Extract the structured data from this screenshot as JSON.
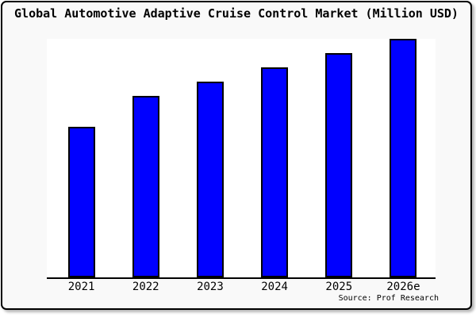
{
  "figure": {
    "title": "Global Automotive Adaptive Cruise Control Market (Million USD)",
    "source": "Source: Prof Research",
    "background_color": "#f9f9f9",
    "plot_background_color": "#ffffff",
    "border_color": "#000000"
  },
  "chart_data": {
    "type": "bar",
    "title": "Global Automotive Adaptive Cruise Control Market (Million USD)",
    "categories": [
      "2021",
      "2022",
      "2023",
      "2024",
      "2025",
      "2026e"
    ],
    "values": [
      63,
      76,
      82,
      88,
      94,
      100
    ],
    "values_note": "estimated relative heights; chart shows no y-axis or value labels; 2026e = 100",
    "xlabel": "",
    "ylabel": "",
    "ylim": [
      0,
      100
    ],
    "grid": false,
    "legend": false,
    "y_axis_shown": false,
    "bar_color": "#0000ff",
    "bar_border_color": "#000000",
    "annotations": [
      "Source: Prof Research"
    ]
  }
}
